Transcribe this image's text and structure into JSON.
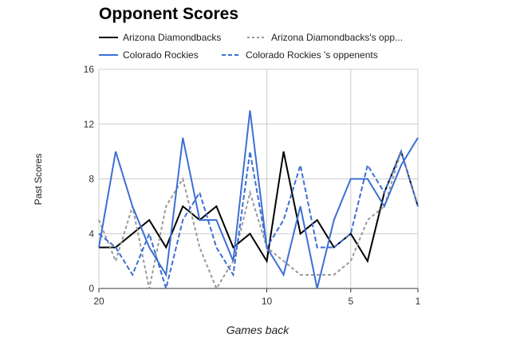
{
  "chart_data": {
    "type": "line",
    "title": "Opponent Scores",
    "xlabel": "Games back",
    "ylabel": "Past Scores",
    "x": [
      20,
      19,
      18,
      17,
      16,
      15,
      14,
      13,
      12,
      11,
      10,
      9,
      8,
      7,
      6,
      5,
      4,
      3,
      2,
      1
    ],
    "x_ticks": [
      20,
      10,
      5,
      1
    ],
    "xlim": [
      20,
      1
    ],
    "ylim": [
      0,
      16
    ],
    "y_ticks": [
      0,
      4,
      8,
      12,
      16
    ],
    "grid": true,
    "legend_position": "top",
    "series": [
      {
        "name": "Arizona Diamondbacks",
        "color": "#000000",
        "dash": "solid",
        "values": [
          3,
          3,
          4,
          5,
          3,
          6,
          5,
          6,
          3,
          4,
          2,
          10,
          4,
          5,
          3,
          4,
          2,
          7,
          10,
          6
        ]
      },
      {
        "name": "Arizona Diamondbacks's opp...",
        "color": "#999999",
        "dash": "dotted",
        "values": [
          5,
          2,
          6,
          0,
          6,
          8,
          3,
          0,
          2,
          7,
          3,
          2,
          1,
          1,
          1,
          2,
          5,
          6,
          10,
          6
        ]
      },
      {
        "name": "Colorado Rockies",
        "color": "#3c6fd4",
        "dash": "solid",
        "values": [
          3,
          10,
          6,
          3,
          1,
          11,
          5,
          5,
          2,
          13,
          3,
          1,
          6,
          0,
          5,
          8,
          8,
          6,
          9,
          11
        ]
      },
      {
        "name": "Colorado Rockies 's oppenents",
        "color": "#3c6fd4",
        "dash": "dashed",
        "values": [
          4,
          3,
          1,
          4,
          0,
          5,
          7,
          3,
          1,
          10,
          3,
          5,
          9,
          3,
          3,
          4,
          9,
          7,
          10,
          6
        ]
      }
    ]
  }
}
